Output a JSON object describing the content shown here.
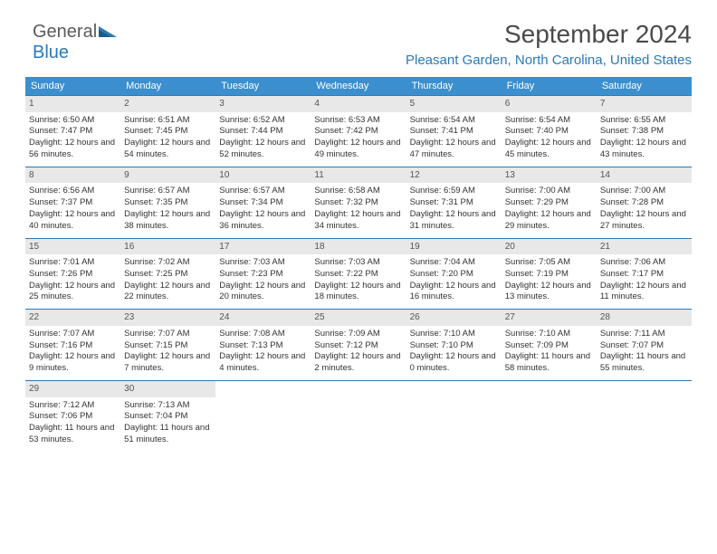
{
  "logo": {
    "word1": "General",
    "word2": "Blue"
  },
  "header": {
    "title": "September 2024",
    "subtitle": "Pleasant Garden, North Carolina, United States"
  },
  "colors": {
    "header_bg": "#3b8fcf",
    "accent": "#2a7ab8",
    "daynum_bg": "#e8e8e8",
    "text": "#333333",
    "background": "#ffffff"
  },
  "dayHeaders": [
    "Sunday",
    "Monday",
    "Tuesday",
    "Wednesday",
    "Thursday",
    "Friday",
    "Saturday"
  ],
  "days": [
    {
      "n": 1,
      "sr": "Sunrise: 6:50 AM",
      "ss": "Sunset: 7:47 PM",
      "dl": "Daylight: 12 hours and 56 minutes."
    },
    {
      "n": 2,
      "sr": "Sunrise: 6:51 AM",
      "ss": "Sunset: 7:45 PM",
      "dl": "Daylight: 12 hours and 54 minutes."
    },
    {
      "n": 3,
      "sr": "Sunrise: 6:52 AM",
      "ss": "Sunset: 7:44 PM",
      "dl": "Daylight: 12 hours and 52 minutes."
    },
    {
      "n": 4,
      "sr": "Sunrise: 6:53 AM",
      "ss": "Sunset: 7:42 PM",
      "dl": "Daylight: 12 hours and 49 minutes."
    },
    {
      "n": 5,
      "sr": "Sunrise: 6:54 AM",
      "ss": "Sunset: 7:41 PM",
      "dl": "Daylight: 12 hours and 47 minutes."
    },
    {
      "n": 6,
      "sr": "Sunrise: 6:54 AM",
      "ss": "Sunset: 7:40 PM",
      "dl": "Daylight: 12 hours and 45 minutes."
    },
    {
      "n": 7,
      "sr": "Sunrise: 6:55 AM",
      "ss": "Sunset: 7:38 PM",
      "dl": "Daylight: 12 hours and 43 minutes."
    },
    {
      "n": 8,
      "sr": "Sunrise: 6:56 AM",
      "ss": "Sunset: 7:37 PM",
      "dl": "Daylight: 12 hours and 40 minutes."
    },
    {
      "n": 9,
      "sr": "Sunrise: 6:57 AM",
      "ss": "Sunset: 7:35 PM",
      "dl": "Daylight: 12 hours and 38 minutes."
    },
    {
      "n": 10,
      "sr": "Sunrise: 6:57 AM",
      "ss": "Sunset: 7:34 PM",
      "dl": "Daylight: 12 hours and 36 minutes."
    },
    {
      "n": 11,
      "sr": "Sunrise: 6:58 AM",
      "ss": "Sunset: 7:32 PM",
      "dl": "Daylight: 12 hours and 34 minutes."
    },
    {
      "n": 12,
      "sr": "Sunrise: 6:59 AM",
      "ss": "Sunset: 7:31 PM",
      "dl": "Daylight: 12 hours and 31 minutes."
    },
    {
      "n": 13,
      "sr": "Sunrise: 7:00 AM",
      "ss": "Sunset: 7:29 PM",
      "dl": "Daylight: 12 hours and 29 minutes."
    },
    {
      "n": 14,
      "sr": "Sunrise: 7:00 AM",
      "ss": "Sunset: 7:28 PM",
      "dl": "Daylight: 12 hours and 27 minutes."
    },
    {
      "n": 15,
      "sr": "Sunrise: 7:01 AM",
      "ss": "Sunset: 7:26 PM",
      "dl": "Daylight: 12 hours and 25 minutes."
    },
    {
      "n": 16,
      "sr": "Sunrise: 7:02 AM",
      "ss": "Sunset: 7:25 PM",
      "dl": "Daylight: 12 hours and 22 minutes."
    },
    {
      "n": 17,
      "sr": "Sunrise: 7:03 AM",
      "ss": "Sunset: 7:23 PM",
      "dl": "Daylight: 12 hours and 20 minutes."
    },
    {
      "n": 18,
      "sr": "Sunrise: 7:03 AM",
      "ss": "Sunset: 7:22 PM",
      "dl": "Daylight: 12 hours and 18 minutes."
    },
    {
      "n": 19,
      "sr": "Sunrise: 7:04 AM",
      "ss": "Sunset: 7:20 PM",
      "dl": "Daylight: 12 hours and 16 minutes."
    },
    {
      "n": 20,
      "sr": "Sunrise: 7:05 AM",
      "ss": "Sunset: 7:19 PM",
      "dl": "Daylight: 12 hours and 13 minutes."
    },
    {
      "n": 21,
      "sr": "Sunrise: 7:06 AM",
      "ss": "Sunset: 7:17 PM",
      "dl": "Daylight: 12 hours and 11 minutes."
    },
    {
      "n": 22,
      "sr": "Sunrise: 7:07 AM",
      "ss": "Sunset: 7:16 PM",
      "dl": "Daylight: 12 hours and 9 minutes."
    },
    {
      "n": 23,
      "sr": "Sunrise: 7:07 AM",
      "ss": "Sunset: 7:15 PM",
      "dl": "Daylight: 12 hours and 7 minutes."
    },
    {
      "n": 24,
      "sr": "Sunrise: 7:08 AM",
      "ss": "Sunset: 7:13 PM",
      "dl": "Daylight: 12 hours and 4 minutes."
    },
    {
      "n": 25,
      "sr": "Sunrise: 7:09 AM",
      "ss": "Sunset: 7:12 PM",
      "dl": "Daylight: 12 hours and 2 minutes."
    },
    {
      "n": 26,
      "sr": "Sunrise: 7:10 AM",
      "ss": "Sunset: 7:10 PM",
      "dl": "Daylight: 12 hours and 0 minutes."
    },
    {
      "n": 27,
      "sr": "Sunrise: 7:10 AM",
      "ss": "Sunset: 7:09 PM",
      "dl": "Daylight: 11 hours and 58 minutes."
    },
    {
      "n": 28,
      "sr": "Sunrise: 7:11 AM",
      "ss": "Sunset: 7:07 PM",
      "dl": "Daylight: 11 hours and 55 minutes."
    },
    {
      "n": 29,
      "sr": "Sunrise: 7:12 AM",
      "ss": "Sunset: 7:06 PM",
      "dl": "Daylight: 11 hours and 53 minutes."
    },
    {
      "n": 30,
      "sr": "Sunrise: 7:13 AM",
      "ss": "Sunset: 7:04 PM",
      "dl": "Daylight: 11 hours and 51 minutes."
    }
  ]
}
